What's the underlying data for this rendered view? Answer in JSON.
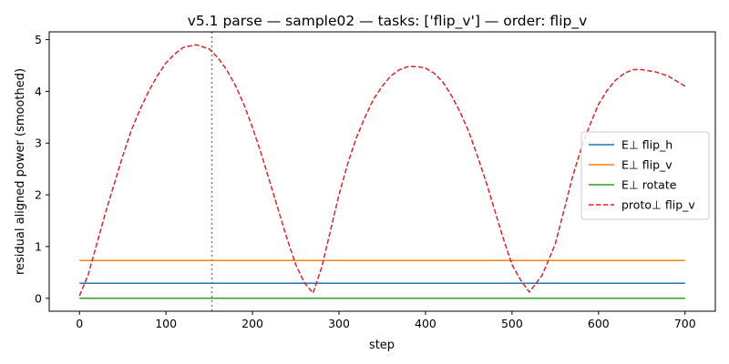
{
  "chart_data": {
    "type": "line",
    "title": "v5.1 parse — sample02 — tasks: ['flip_v'] — order: flip_v",
    "xlabel": "step",
    "ylabel": "residual aligned power (smoothed)",
    "xlim": [
      -35,
      735
    ],
    "ylim": [
      -0.25,
      5.15
    ],
    "xticks": [
      0,
      100,
      200,
      300,
      400,
      500,
      600,
      700
    ],
    "yticks": [
      0,
      1,
      2,
      3,
      4,
      5
    ],
    "grid": false,
    "legend_position": "center-right",
    "vline": {
      "x": 153,
      "color": "#808080",
      "style": "dotted"
    },
    "series": [
      {
        "name": "E⊥ flip_h",
        "color": "#1f77b4",
        "style": "solid",
        "x": [
          0,
          700
        ],
        "y": [
          0.29,
          0.29
        ]
      },
      {
        "name": "E⊥ flip_v",
        "color": "#ff7f0e",
        "style": "solid",
        "x": [
          0,
          700
        ],
        "y": [
          0.73,
          0.73
        ]
      },
      {
        "name": "E⊥ rotate",
        "color": "#2ca02c",
        "style": "solid",
        "x": [
          0,
          700
        ],
        "y": [
          0.0,
          0.0
        ]
      },
      {
        "name": "proto⊥ flip_v",
        "color": "#d62728",
        "style": "dashed",
        "x": [
          0,
          10,
          20,
          30,
          40,
          50,
          60,
          70,
          80,
          90,
          100,
          110,
          120,
          135,
          150,
          160,
          170,
          180,
          190,
          200,
          210,
          220,
          230,
          240,
          250,
          260,
          270,
          280,
          290,
          300,
          310,
          320,
          330,
          340,
          350,
          360,
          370,
          380,
          390,
          400,
          410,
          420,
          430,
          440,
          450,
          460,
          470,
          480,
          490,
          500,
          510,
          520,
          535,
          550,
          560,
          570,
          580,
          590,
          600,
          610,
          620,
          630,
          640,
          650,
          665,
          680,
          690,
          700
        ],
        "y": [
          0.05,
          0.45,
          1.05,
          1.65,
          2.2,
          2.75,
          3.25,
          3.65,
          4.0,
          4.3,
          4.55,
          4.72,
          4.85,
          4.9,
          4.82,
          4.65,
          4.42,
          4.12,
          3.75,
          3.3,
          2.8,
          2.25,
          1.7,
          1.15,
          0.65,
          0.3,
          0.1,
          0.6,
          1.3,
          2.0,
          2.6,
          3.1,
          3.5,
          3.85,
          4.1,
          4.3,
          4.42,
          4.48,
          4.48,
          4.45,
          4.35,
          4.18,
          3.92,
          3.6,
          3.22,
          2.75,
          2.25,
          1.7,
          1.15,
          0.65,
          0.35,
          0.12,
          0.45,
          1.05,
          1.7,
          2.35,
          2.9,
          3.35,
          3.75,
          4.02,
          4.22,
          4.35,
          4.42,
          4.42,
          4.38,
          4.3,
          4.2,
          4.1
        ]
      }
    ]
  }
}
